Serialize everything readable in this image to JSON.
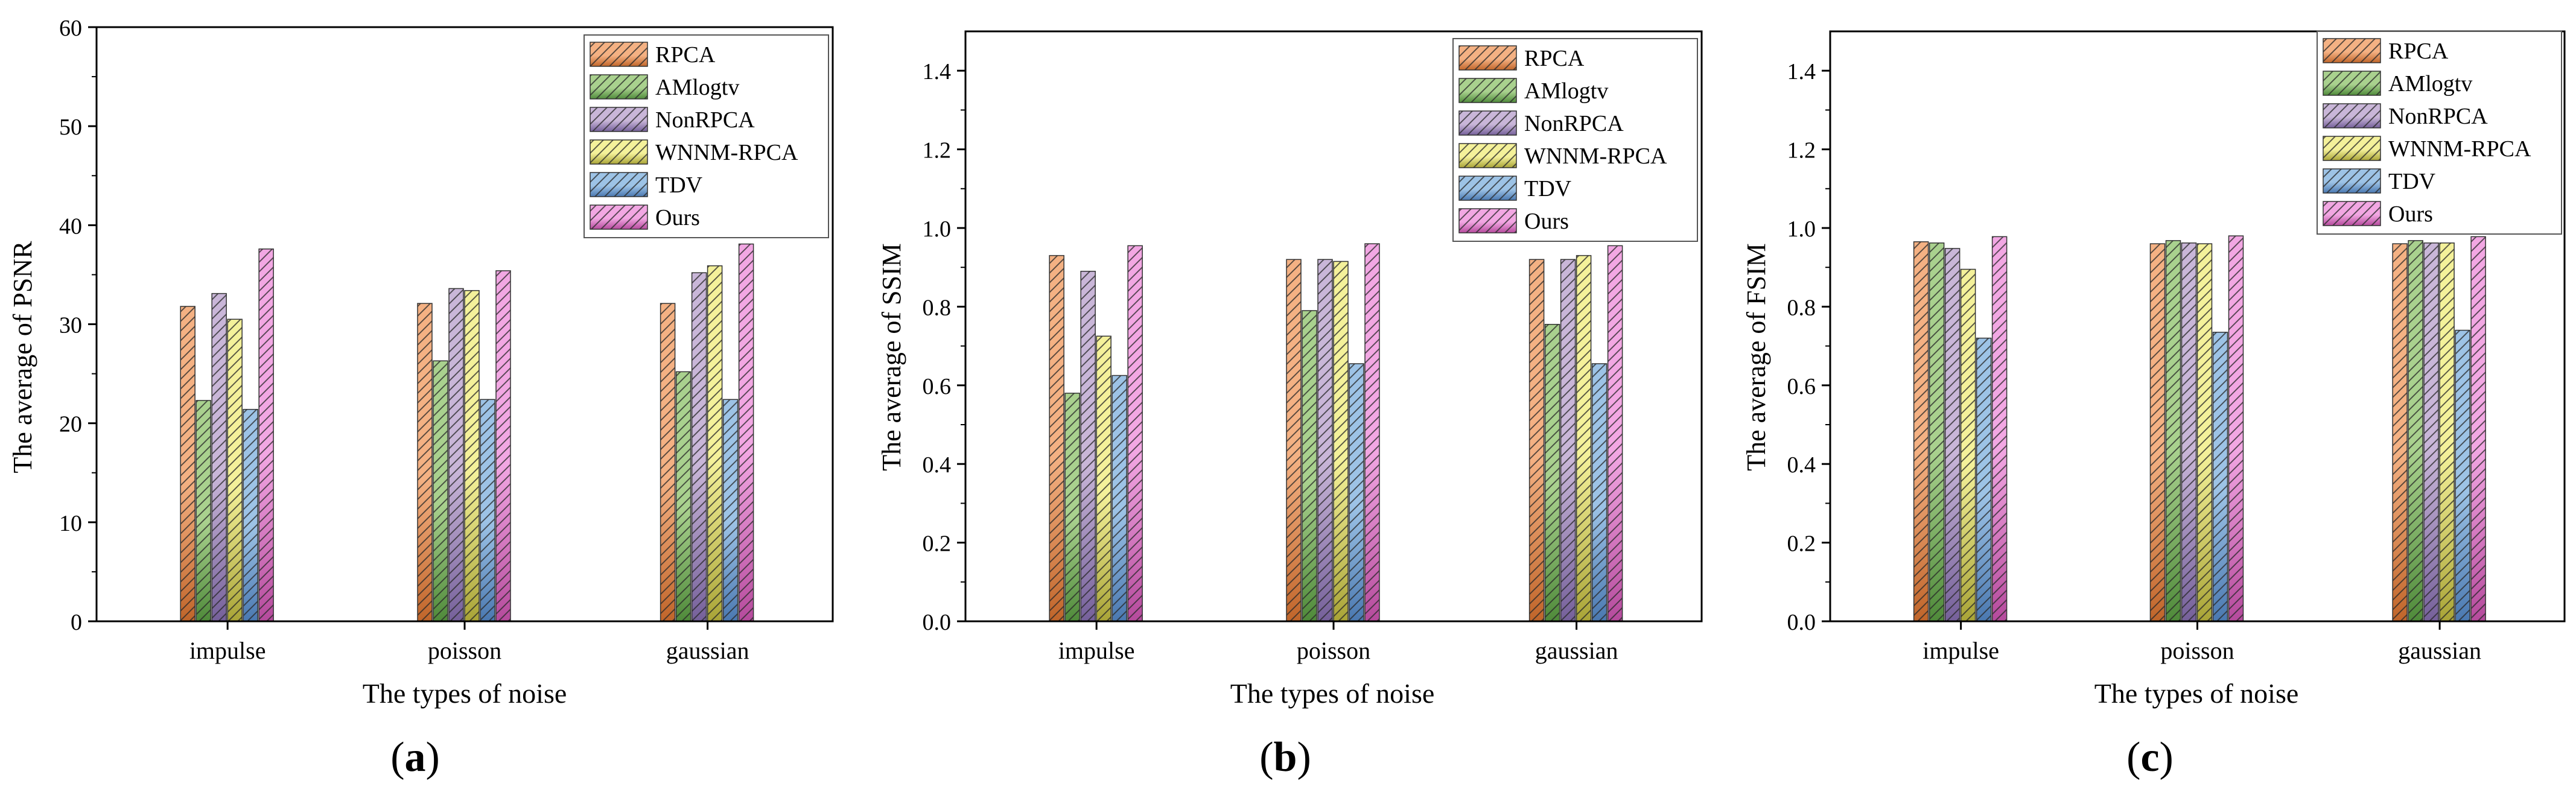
{
  "series_names": [
    "RPCA",
    "AMlogtv",
    "NonRPCA",
    "WNNM-RPCA",
    "TDV",
    "Ours"
  ],
  "series_colors": [
    "#f4b183",
    "#a9d18e",
    "#c9b6d8",
    "#f4f19a",
    "#9dc3e6",
    "#f2a7e3"
  ],
  "series_dark_colors": [
    "#c0652a",
    "#4f8a3a",
    "#75609a",
    "#a9a437",
    "#4a78b0",
    "#b54a9c"
  ],
  "categories": [
    "impulse",
    "poisson",
    "gaussian"
  ],
  "chart_data": [
    {
      "type": "bar",
      "panel_label": "a",
      "ylabel": "The average of PSNR",
      "xlabel": "The types of noise",
      "ylim": [
        0,
        60
      ],
      "yticks": [
        "0",
        "10",
        "20",
        "30",
        "40",
        "50",
        "60"
      ],
      "legend": "top-right",
      "categories": [
        "impulse",
        "poisson",
        "gaussian"
      ],
      "series": [
        {
          "name": "RPCA",
          "values": [
            31.8,
            32.1,
            32.1
          ]
        },
        {
          "name": "AMlogtv",
          "values": [
            22.3,
            26.3,
            25.2
          ]
        },
        {
          "name": "NonRPCA",
          "values": [
            33.1,
            33.6,
            35.2
          ]
        },
        {
          "name": "WNNM-RPCA",
          "values": [
            30.5,
            33.4,
            35.9
          ]
        },
        {
          "name": "TDV",
          "values": [
            21.4,
            22.4,
            22.4
          ]
        },
        {
          "name": "Ours",
          "values": [
            37.6,
            35.4,
            38.1
          ]
        }
      ]
    },
    {
      "type": "bar",
      "panel_label": "b",
      "ylabel": "The average of SSIM",
      "xlabel": "The types of noise",
      "ylim": [
        0,
        1.5
      ],
      "yticks": [
        "0.0",
        "0.2",
        "0.4",
        "0.6",
        "0.8",
        "1.0",
        "1.2",
        "1.4"
      ],
      "legend": "top-right",
      "categories": [
        "impulse",
        "poisson",
        "gaussian"
      ],
      "series": [
        {
          "name": "RPCA",
          "values": [
            0.93,
            0.92,
            0.92
          ]
        },
        {
          "name": "AMlogtv",
          "values": [
            0.58,
            0.79,
            0.755
          ]
        },
        {
          "name": "NonRPCA",
          "values": [
            0.89,
            0.92,
            0.92
          ]
        },
        {
          "name": "WNNM-RPCA",
          "values": [
            0.725,
            0.915,
            0.93
          ]
        },
        {
          "name": "TDV",
          "values": [
            0.625,
            0.655,
            0.655
          ]
        },
        {
          "name": "Ours",
          "values": [
            0.955,
            0.96,
            0.955
          ]
        }
      ]
    },
    {
      "type": "bar",
      "panel_label": "c",
      "ylabel": "The average of FSIM",
      "xlabel": "The types of noise",
      "ylim": [
        0,
        1.5
      ],
      "yticks": [
        "0.0",
        "0.2",
        "0.4",
        "0.6",
        "0.8",
        "1.0",
        "1.2",
        "1.4"
      ],
      "legend": "top-right",
      "categories": [
        "impulse",
        "poisson",
        "gaussian"
      ],
      "series": [
        {
          "name": "RPCA",
          "values": [
            0.965,
            0.96,
            0.96
          ]
        },
        {
          "name": "AMlogtv",
          "values": [
            0.962,
            0.968,
            0.968
          ]
        },
        {
          "name": "NonRPCA",
          "values": [
            0.948,
            0.962,
            0.962
          ]
        },
        {
          "name": "WNNM-RPCA",
          "values": [
            0.895,
            0.96,
            0.962
          ]
        },
        {
          "name": "TDV",
          "values": [
            0.72,
            0.735,
            0.74
          ]
        },
        {
          "name": "Ours",
          "values": [
            0.978,
            0.98,
            0.978
          ]
        }
      ]
    }
  ]
}
